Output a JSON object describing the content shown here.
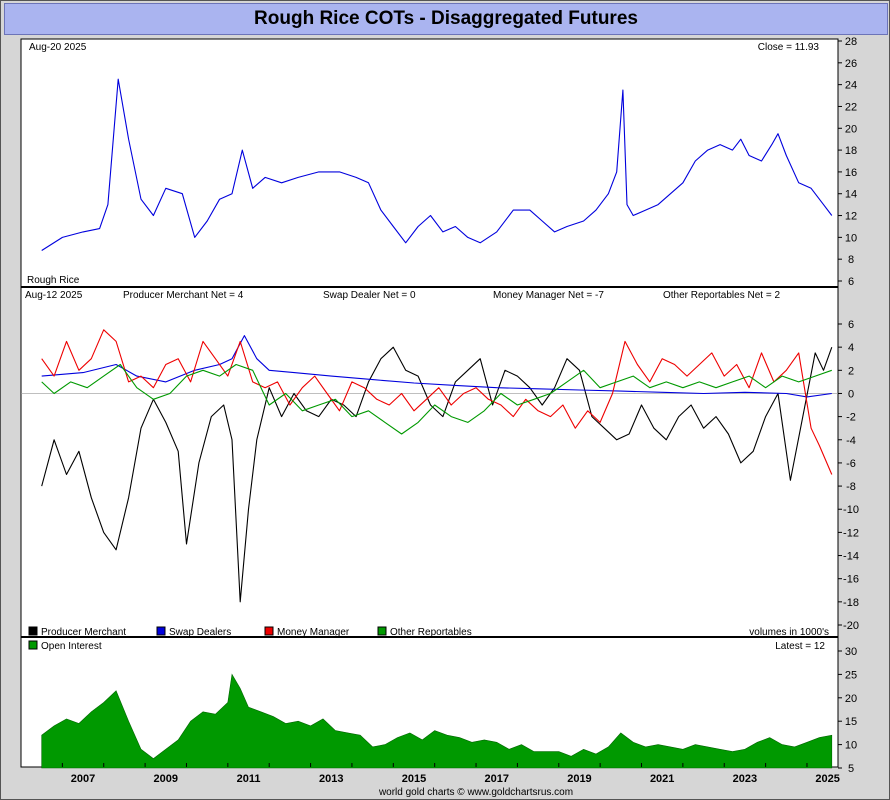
{
  "title": "Rough Rice COTs - Disaggregated Futures",
  "footer": "world gold charts © www.goldchartsrus.com",
  "chart_data": [
    {
      "panel": "price",
      "type": "line",
      "date_label": "Aug-20 2025",
      "value_label": "Close = 11.93",
      "series_label": "Rough Rice",
      "color": "#0000dd",
      "ylim": [
        6,
        28
      ],
      "y_ticks": [
        6,
        8,
        10,
        12,
        14,
        16,
        18,
        20,
        22,
        24,
        26,
        28
      ],
      "series": [
        {
          "name": "Rough Rice",
          "x": [
            2006.5,
            2007.0,
            2007.5,
            2007.9,
            2008.1,
            2008.35,
            2008.6,
            2008.9,
            2009.2,
            2009.5,
            2009.9,
            2010.2,
            2010.5,
            2010.8,
            2011.1,
            2011.35,
            2011.6,
            2011.9,
            2012.3,
            2012.7,
            2013.2,
            2013.7,
            2014.1,
            2014.4,
            2014.7,
            2015.0,
            2015.3,
            2015.6,
            2015.9,
            2016.2,
            2016.5,
            2016.8,
            2017.1,
            2017.5,
            2017.9,
            2018.3,
            2018.6,
            2018.9,
            2019.2,
            2019.6,
            2019.9,
            2020.2,
            2020.4,
            2020.55,
            2020.65,
            2020.8,
            2021.1,
            2021.4,
            2021.7,
            2022.0,
            2022.3,
            2022.6,
            2022.9,
            2023.2,
            2023.4,
            2023.6,
            2023.9,
            2024.15,
            2024.3,
            2024.5,
            2024.8,
            2025.1,
            2025.4,
            2025.6
          ],
          "values": [
            8.8,
            10.0,
            10.5,
            10.8,
            13.0,
            24.5,
            19.0,
            13.5,
            12.0,
            14.5,
            14.0,
            10.0,
            11.5,
            13.5,
            14.0,
            18.0,
            14.5,
            15.5,
            15.0,
            15.5,
            16.0,
            16.0,
            15.5,
            15.0,
            12.5,
            11.0,
            9.5,
            11.0,
            12.0,
            10.5,
            11.0,
            10.0,
            9.5,
            10.5,
            12.5,
            12.5,
            11.5,
            10.5,
            11.0,
            11.5,
            12.5,
            14.0,
            16.0,
            23.5,
            13.0,
            12.0,
            12.5,
            13.0,
            14.0,
            15.0,
            17.0,
            18.0,
            18.5,
            18.0,
            19.0,
            17.5,
            17.0,
            18.5,
            19.5,
            17.5,
            15.0,
            14.5,
            13.0,
            12.0
          ]
        }
      ]
    },
    {
      "panel": "cot_net",
      "type": "line",
      "date_label": "Aug-12 2025",
      "ylim": [
        -20,
        6
      ],
      "y_ticks": [
        6,
        4,
        2,
        0,
        -2,
        -4,
        -6,
        -8,
        -10,
        -12,
        -14,
        -16,
        -18,
        -20
      ],
      "net_labels": [
        "Producer Merchant Net = 4",
        "Swap Dealer Net = 0",
        "Money Manager Net = -7",
        "Other Reportables Net = 2"
      ],
      "legend": [
        "Producer Merchant",
        "Swap Dealers",
        "Money Manager",
        "Other Reportables"
      ],
      "volumes_label": "volumes in 1000's",
      "series": [
        {
          "name": "Producer Merchant",
          "color": "#000000",
          "x": [
            2006.5,
            2006.8,
            2007.1,
            2007.4,
            2007.7,
            2008.0,
            2008.3,
            2008.6,
            2008.9,
            2009.2,
            2009.5,
            2009.8,
            2010.0,
            2010.3,
            2010.6,
            2010.9,
            2011.1,
            2011.3,
            2011.5,
            2011.7,
            2012.0,
            2012.3,
            2012.6,
            2012.9,
            2013.2,
            2013.5,
            2013.8,
            2014.1,
            2014.4,
            2014.7,
            2015.0,
            2015.3,
            2015.6,
            2015.9,
            2016.2,
            2016.5,
            2016.8,
            2017.1,
            2017.4,
            2017.7,
            2018.0,
            2018.3,
            2018.6,
            2018.9,
            2019.2,
            2019.5,
            2019.8,
            2020.1,
            2020.4,
            2020.7,
            2021.0,
            2021.3,
            2021.6,
            2021.9,
            2022.2,
            2022.5,
            2022.8,
            2023.1,
            2023.4,
            2023.7,
            2024.0,
            2024.3,
            2024.6,
            2024.9,
            2025.2,
            2025.4,
            2025.6
          ],
          "values": [
            -8.0,
            -4.0,
            -7.0,
            -5.0,
            -9.0,
            -12.0,
            -13.5,
            -9.0,
            -3.0,
            -0.5,
            -2.5,
            -5.0,
            -13.0,
            -6.0,
            -2.0,
            -1.0,
            -4.0,
            -18.0,
            -10.0,
            -4.0,
            0.5,
            -2.0,
            0.0,
            -1.5,
            -2.0,
            -0.5,
            -1.0,
            -2.0,
            1.0,
            3.0,
            4.0,
            2.0,
            1.5,
            -1.0,
            -2.0,
            1.0,
            2.0,
            3.0,
            -1.0,
            2.0,
            1.5,
            0.5,
            -1.0,
            0.5,
            3.0,
            2.0,
            -2.0,
            -3.0,
            -4.0,
            -3.5,
            -1.0,
            -3.0,
            -4.0,
            -2.0,
            -1.0,
            -3.0,
            -2.0,
            -3.5,
            -6.0,
            -5.0,
            -2.0,
            0.0,
            -7.5,
            -2.0,
            3.5,
            2.0,
            4.0
          ]
        },
        {
          "name": "Swap Dealers",
          "color": "#0000dd",
          "x": [
            2006.5,
            2007.5,
            2008.3,
            2008.8,
            2009.5,
            2010.2,
            2010.8,
            2011.1,
            2011.4,
            2011.7,
            2012.0,
            2012.6,
            2013.5,
            2014.5,
            2015.5,
            2016.5,
            2017.5,
            2018.5,
            2019.5,
            2020.5,
            2021.5,
            2022.5,
            2023.5,
            2024.5,
            2025.0,
            2025.6
          ],
          "values": [
            1.5,
            1.8,
            2.5,
            1.5,
            1.0,
            2.0,
            2.5,
            3.0,
            5.0,
            3.0,
            2.0,
            1.8,
            1.5,
            1.2,
            0.9,
            0.7,
            0.5,
            0.4,
            0.3,
            0.2,
            0.1,
            0.0,
            0.1,
            0.0,
            -0.3,
            0.0
          ]
        },
        {
          "name": "Money Manager",
          "color": "#ee0000",
          "x": [
            2006.5,
            2006.8,
            2007.1,
            2007.4,
            2007.7,
            2008.0,
            2008.3,
            2008.6,
            2008.9,
            2009.2,
            2009.5,
            2009.8,
            2010.1,
            2010.4,
            2010.7,
            2011.0,
            2011.3,
            2011.6,
            2011.9,
            2012.2,
            2012.5,
            2012.8,
            2013.1,
            2013.4,
            2013.7,
            2014.0,
            2014.3,
            2014.6,
            2014.9,
            2015.2,
            2015.5,
            2015.8,
            2016.1,
            2016.4,
            2016.7,
            2017.0,
            2017.3,
            2017.6,
            2017.9,
            2018.2,
            2018.5,
            2018.8,
            2019.1,
            2019.4,
            2019.7,
            2020.0,
            2020.3,
            2020.6,
            2020.9,
            2021.2,
            2021.5,
            2021.8,
            2022.1,
            2022.4,
            2022.7,
            2023.0,
            2023.3,
            2023.6,
            2023.9,
            2024.2,
            2024.5,
            2024.8,
            2025.1,
            2025.3,
            2025.6
          ],
          "values": [
            3.0,
            1.5,
            4.5,
            2.0,
            3.0,
            5.5,
            4.5,
            1.0,
            1.5,
            0.5,
            2.5,
            3.0,
            1.0,
            4.5,
            3.0,
            1.5,
            4.5,
            1.0,
            0.5,
            1.0,
            -1.0,
            0.5,
            1.5,
            0.0,
            -1.5,
            1.0,
            0.5,
            -0.5,
            -1.0,
            0.0,
            -1.5,
            -0.5,
            0.5,
            -1.0,
            0.0,
            0.5,
            -0.5,
            -1.0,
            -2.0,
            -0.5,
            -1.5,
            -2.0,
            -1.0,
            -3.0,
            -1.5,
            -2.5,
            0.0,
            4.5,
            2.5,
            1.0,
            3.0,
            2.5,
            1.5,
            2.5,
            3.5,
            1.5,
            2.5,
            0.5,
            3.5,
            1.0,
            2.0,
            3.5,
            -3.0,
            -4.5,
            -7.0
          ]
        },
        {
          "name": "Other Reportables",
          "color": "#009900",
          "x": [
            2006.5,
            2006.8,
            2007.2,
            2007.6,
            2008.0,
            2008.4,
            2008.8,
            2009.2,
            2009.6,
            2010.0,
            2010.4,
            2010.8,
            2011.2,
            2011.6,
            2012.0,
            2012.4,
            2012.8,
            2013.2,
            2013.6,
            2014.0,
            2014.4,
            2014.8,
            2015.2,
            2015.6,
            2016.0,
            2016.4,
            2016.8,
            2017.2,
            2017.6,
            2018.0,
            2018.4,
            2018.8,
            2019.2,
            2019.6,
            2020.0,
            2020.4,
            2020.8,
            2021.2,
            2021.6,
            2022.0,
            2022.4,
            2022.8,
            2023.2,
            2023.6,
            2024.0,
            2024.4,
            2024.8,
            2025.2,
            2025.6
          ],
          "values": [
            1.0,
            0.0,
            1.0,
            0.5,
            1.5,
            2.5,
            0.5,
            -0.5,
            0.0,
            1.5,
            2.0,
            1.5,
            2.5,
            2.0,
            -1.0,
            0.0,
            -1.5,
            -1.0,
            -0.5,
            -2.0,
            -1.5,
            -2.5,
            -3.5,
            -2.5,
            -1.0,
            -2.0,
            -2.5,
            -1.5,
            0.0,
            -1.0,
            -0.5,
            0.0,
            1.0,
            2.0,
            0.5,
            1.0,
            1.5,
            0.5,
            1.0,
            0.5,
            1.0,
            0.5,
            1.0,
            1.5,
            0.5,
            1.5,
            1.0,
            1.5,
            2.0
          ]
        }
      ]
    },
    {
      "panel": "open_interest",
      "type": "area",
      "label": "Open Interest",
      "latest_label": "Latest = 12",
      "color": "#009900",
      "ylim": [
        5,
        30
      ],
      "y_ticks": [
        5,
        10,
        15,
        20,
        25,
        30
      ],
      "series": [
        {
          "name": "Open Interest",
          "x": [
            2006.5,
            2006.8,
            2007.1,
            2007.4,
            2007.7,
            2008.0,
            2008.3,
            2008.6,
            2008.9,
            2009.2,
            2009.5,
            2009.8,
            2010.1,
            2010.4,
            2010.7,
            2011.0,
            2011.1,
            2011.3,
            2011.5,
            2011.8,
            2012.1,
            2012.4,
            2012.7,
            2013.0,
            2013.3,
            2013.6,
            2013.9,
            2014.2,
            2014.5,
            2014.8,
            2015.1,
            2015.4,
            2015.7,
            2016.0,
            2016.3,
            2016.6,
            2016.9,
            2017.2,
            2017.5,
            2017.8,
            2018.1,
            2018.4,
            2018.7,
            2019.0,
            2019.3,
            2019.6,
            2019.9,
            2020.2,
            2020.5,
            2020.8,
            2021.1,
            2021.4,
            2021.7,
            2022.0,
            2022.3,
            2022.6,
            2022.9,
            2023.2,
            2023.5,
            2023.8,
            2024.1,
            2024.4,
            2024.7,
            2025.0,
            2025.3,
            2025.6
          ],
          "values": [
            12.0,
            14.0,
            15.5,
            14.5,
            17.0,
            19.0,
            21.5,
            15.0,
            9.0,
            7.0,
            9.0,
            11.0,
            15.0,
            17.0,
            16.5,
            19.0,
            25.0,
            22.0,
            18.0,
            17.0,
            16.0,
            14.5,
            15.0,
            14.0,
            15.5,
            13.0,
            12.5,
            12.0,
            9.5,
            10.0,
            11.5,
            12.5,
            11.0,
            13.0,
            12.0,
            11.5,
            10.5,
            11.0,
            10.5,
            9.0,
            10.0,
            8.5,
            8.5,
            8.5,
            7.5,
            9.0,
            8.0,
            9.5,
            12.5,
            10.5,
            9.5,
            10.0,
            9.5,
            9.0,
            10.0,
            9.5,
            9.0,
            8.5,
            9.0,
            10.5,
            11.5,
            10.0,
            9.5,
            10.5,
            11.5,
            12.0
          ]
        }
      ]
    }
  ],
  "x_axis": {
    "ticks": [
      "2007",
      "2009",
      "2011",
      "2013",
      "2015",
      "2017",
      "2019",
      "2021",
      "2023",
      "2025"
    ]
  }
}
